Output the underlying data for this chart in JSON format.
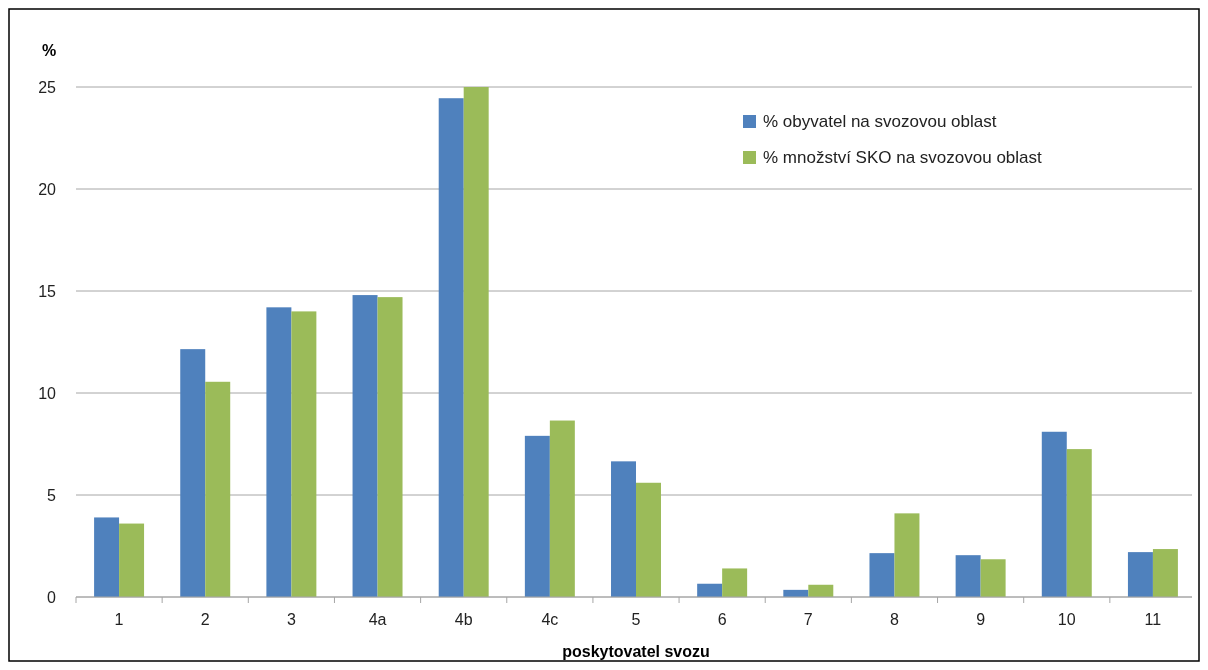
{
  "chart_data": {
    "type": "bar",
    "xlabel": "poskytovatel svozu",
    "ylabel": "%",
    "categories": [
      "1",
      "2",
      "3",
      "4a",
      "4b",
      "4c",
      "5",
      "6",
      "7",
      "8",
      "9",
      "10",
      "11"
    ],
    "series": [
      {
        "name": "% obyvatel na svozovou oblast",
        "color": "#4f81bd",
        "values": [
          3.9,
          12.15,
          14.2,
          14.8,
          24.45,
          7.9,
          6.65,
          0.65,
          0.35,
          2.15,
          2.05,
          8.1,
          2.2
        ]
      },
      {
        "name": "% množství SKO na svozovou oblast",
        "color": "#9bbb59",
        "values": [
          3.6,
          10.55,
          14.0,
          14.7,
          25.0,
          8.65,
          5.6,
          1.4,
          0.6,
          4.1,
          1.85,
          7.25,
          2.35
        ]
      }
    ],
    "ylim": [
      0,
      25
    ],
    "yticks": [
      0,
      5,
      10,
      15,
      20,
      25
    ],
    "grid": "y",
    "legend": "top right"
  }
}
